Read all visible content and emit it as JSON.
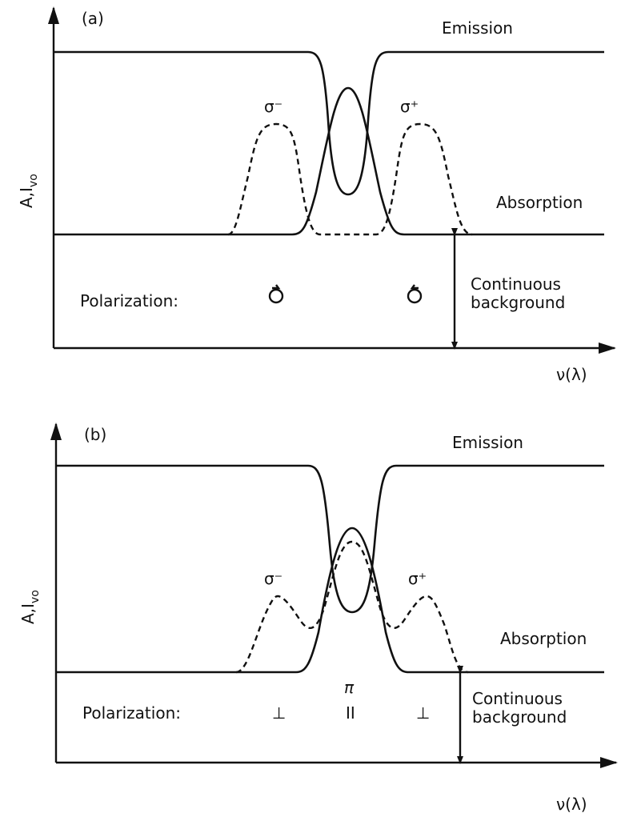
{
  "panels": [
    {
      "label": "(a)",
      "y_axis_label": {
        "main": "A,I",
        "sub": "vo"
      },
      "x_axis_label": "ν(λ)",
      "emission_label": "Emission",
      "absorption_label": "Absorption",
      "sigma_minus": "σ⁻",
      "sigma_plus": "σ⁺",
      "polarization_label": "Polarization:",
      "background_label": [
        "Continuous",
        "background"
      ]
    },
    {
      "label": "(b)",
      "y_axis_label": {
        "main": "A,I",
        "sub": "vo"
      },
      "x_axis_label": "ν(λ)",
      "emission_label": "Emission",
      "absorption_label": "Absorption",
      "sigma_minus": "σ⁻",
      "sigma_plus": "σ⁺",
      "pi": "π",
      "polarization_label": "Polarization:",
      "polarization_symbols": [
        "⊥",
        "II",
        "⊥"
      ],
      "background_label": [
        "Continuous",
        "background"
      ]
    }
  ]
}
